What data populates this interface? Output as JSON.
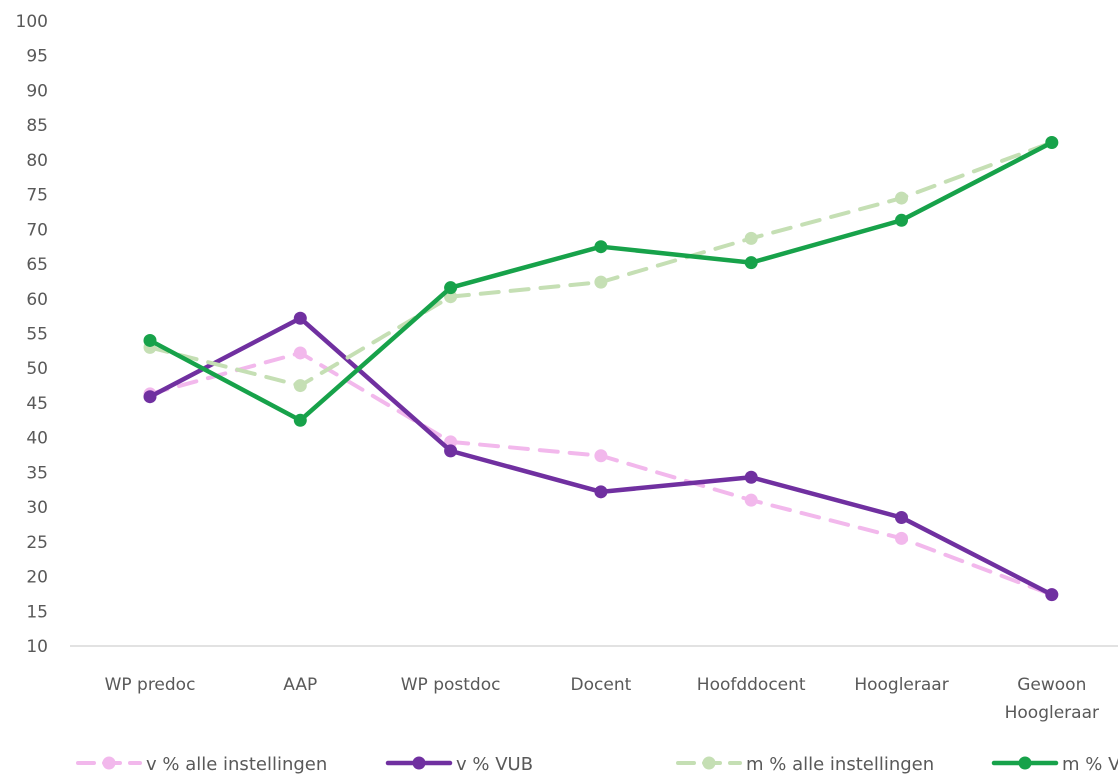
{
  "chart_data": {
    "type": "line",
    "title": "",
    "xlabel": "",
    "ylabel": "",
    "ylim": [
      10,
      100
    ],
    "yticks": [
      10,
      15,
      20,
      25,
      30,
      35,
      40,
      45,
      50,
      55,
      60,
      65,
      70,
      75,
      80,
      85,
      90,
      95,
      100
    ],
    "grid": false,
    "legend_position": "bottom",
    "categories": [
      [
        "WP predoc"
      ],
      [
        "AAP"
      ],
      [
        "WP postdoc"
      ],
      [
        "Docent"
      ],
      [
        "Hoofddocent"
      ],
      [
        "Hoogleraar"
      ],
      [
        "Gewoon",
        "Hoogleraar"
      ]
    ],
    "series": [
      {
        "name": "v % alle instellingen",
        "color": "#f2b8ec",
        "dashed": true,
        "values": [
          46.3,
          52.2,
          39.4,
          37.4,
          31.0,
          25.5,
          17.4
        ]
      },
      {
        "name": "v % VUB",
        "color": "#7030a0",
        "dashed": false,
        "values": [
          45.9,
          57.2,
          38.1,
          32.2,
          34.3,
          28.5,
          17.4
        ]
      },
      {
        "name": "m % alle instellingen",
        "color": "#c5dfb4",
        "dashed": true,
        "values": [
          53.0,
          47.5,
          60.3,
          62.4,
          68.7,
          74.5,
          82.5
        ]
      },
      {
        "name": "m % VUB",
        "color": "#17a24a",
        "dashed": false,
        "values": [
          54.0,
          42.5,
          61.6,
          67.5,
          65.2,
          71.3,
          82.5
        ]
      }
    ]
  }
}
